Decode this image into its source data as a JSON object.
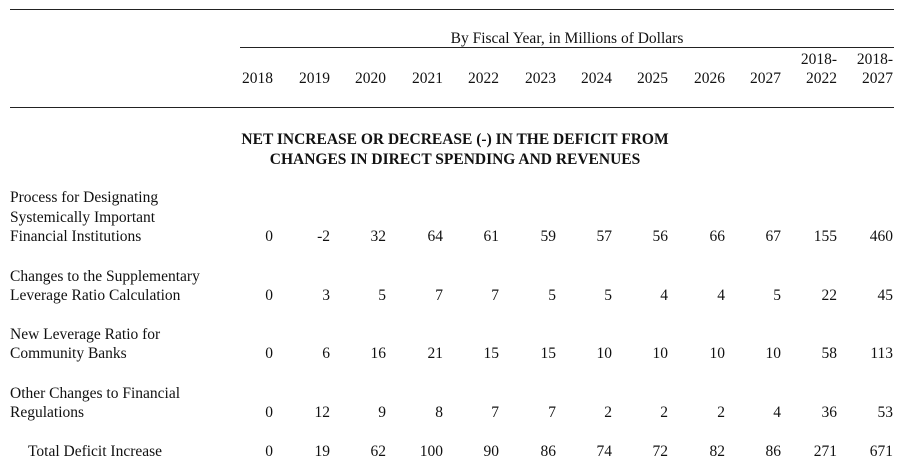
{
  "caption": "By Fiscal Year, in Millions of Dollars",
  "columns": [
    "2018",
    "2019",
    "2020",
    "2021",
    "2022",
    "2023",
    "2024",
    "2025",
    "2026",
    "2027"
  ],
  "span_columns": [
    {
      "top": "2018-",
      "bottom": "2022"
    },
    {
      "top": "2018-",
      "bottom": "2027"
    }
  ],
  "section_title": {
    "line1": "NET INCREASE OR DECREASE (-) IN THE DEFICIT FROM",
    "line2": "CHANGES IN DIRECT SPENDING AND REVENUES"
  },
  "rows": [
    {
      "label_lines": [
        "Process for Designating",
        "Systemically Important",
        "Financial Institutions"
      ],
      "values": [
        "0",
        "-2",
        "32",
        "64",
        "61",
        "59",
        "57",
        "56",
        "66",
        "67",
        "155",
        "460"
      ]
    },
    {
      "label_lines": [
        "Changes to the Supplementary",
        "Leverage Ratio Calculation"
      ],
      "values": [
        "0",
        "3",
        "5",
        "7",
        "7",
        "5",
        "5",
        "4",
        "4",
        "5",
        "22",
        "45"
      ]
    },
    {
      "label_lines": [
        "New Leverage Ratio for",
        "Community Banks"
      ],
      "values": [
        "0",
        "6",
        "16",
        "21",
        "15",
        "15",
        "10",
        "10",
        "10",
        "10",
        "58",
        "113"
      ]
    },
    {
      "label_lines": [
        "Other Changes to Financial",
        "Regulations"
      ],
      "values": [
        "0",
        "12",
        "9",
        "8",
        "7",
        "7",
        "2",
        "2",
        "2",
        "4",
        "36",
        "53"
      ]
    }
  ],
  "total": {
    "label": "Total Deficit Increase",
    "values": [
      "0",
      "19",
      "62",
      "100",
      "90",
      "86",
      "74",
      "72",
      "82",
      "86",
      "271",
      "671"
    ]
  }
}
